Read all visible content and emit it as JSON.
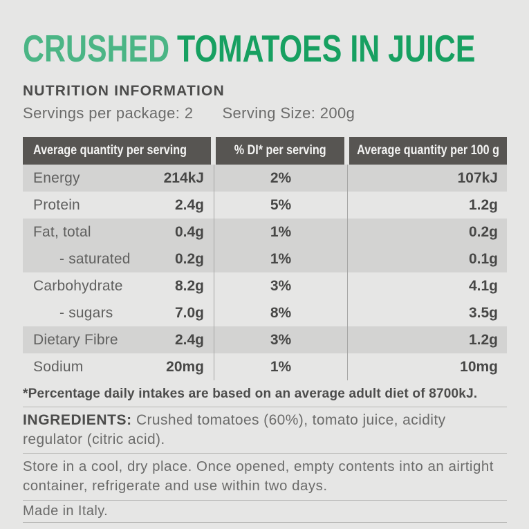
{
  "colors": {
    "title_green_light": "#4bb585",
    "title_green_dark": "#17a061",
    "table_header_bg": "#575552"
  },
  "title": {
    "part1": "CRUSHED",
    "part2": "TOMATOES IN JUICE"
  },
  "nutrition": {
    "heading": "NUTRITION INFORMATION",
    "servings_per_package": "Servings per package: 2",
    "serving_size": "Serving Size: 200g",
    "table": {
      "headers": [
        "Average quantity per serving",
        "% DI* per serving",
        "Average quantity per 100 g"
      ],
      "rows": [
        {
          "name": "Energy",
          "indent": false,
          "per_serving": "214kJ",
          "di": "2%",
          "per_100g": "107kJ",
          "shaded": true
        },
        {
          "name": "Protein",
          "indent": false,
          "per_serving": "2.4g",
          "di": "5%",
          "per_100g": "1.2g",
          "shaded": false
        },
        {
          "name": "Fat, total",
          "indent": false,
          "per_serving": "0.4g",
          "di": "1%",
          "per_100g": "0.2g",
          "shaded": true
        },
        {
          "name": "- saturated",
          "indent": true,
          "per_serving": "0.2g",
          "di": "1%",
          "per_100g": "0.1g",
          "shaded": true
        },
        {
          "name": "Carbohydrate",
          "indent": false,
          "per_serving": "8.2g",
          "di": "3%",
          "per_100g": "4.1g",
          "shaded": false
        },
        {
          "name": "- sugars",
          "indent": true,
          "per_serving": "7.0g",
          "di": "8%",
          "per_100g": "3.5g",
          "shaded": false
        },
        {
          "name": "Dietary Fibre",
          "indent": false,
          "per_serving": "2.4g",
          "di": "3%",
          "per_100g": "1.2g",
          "shaded": true
        },
        {
          "name": "Sodium",
          "indent": false,
          "per_serving": "20mg",
          "di": "1%",
          "per_100g": "10mg",
          "shaded": false
        }
      ]
    },
    "footnote": "*Percentage daily intakes are based on an average adult diet of 8700kJ."
  },
  "ingredients": {
    "label": "INGREDIENTS:",
    "text": " Crushed tomatoes (60%), tomato juice, acidity regulator (citric acid)."
  },
  "storage_text": "Store in a cool, dry place. Once opened, empty contents into an airtight container, refrigerate and use within two days.",
  "origin_text": "Made in Italy."
}
